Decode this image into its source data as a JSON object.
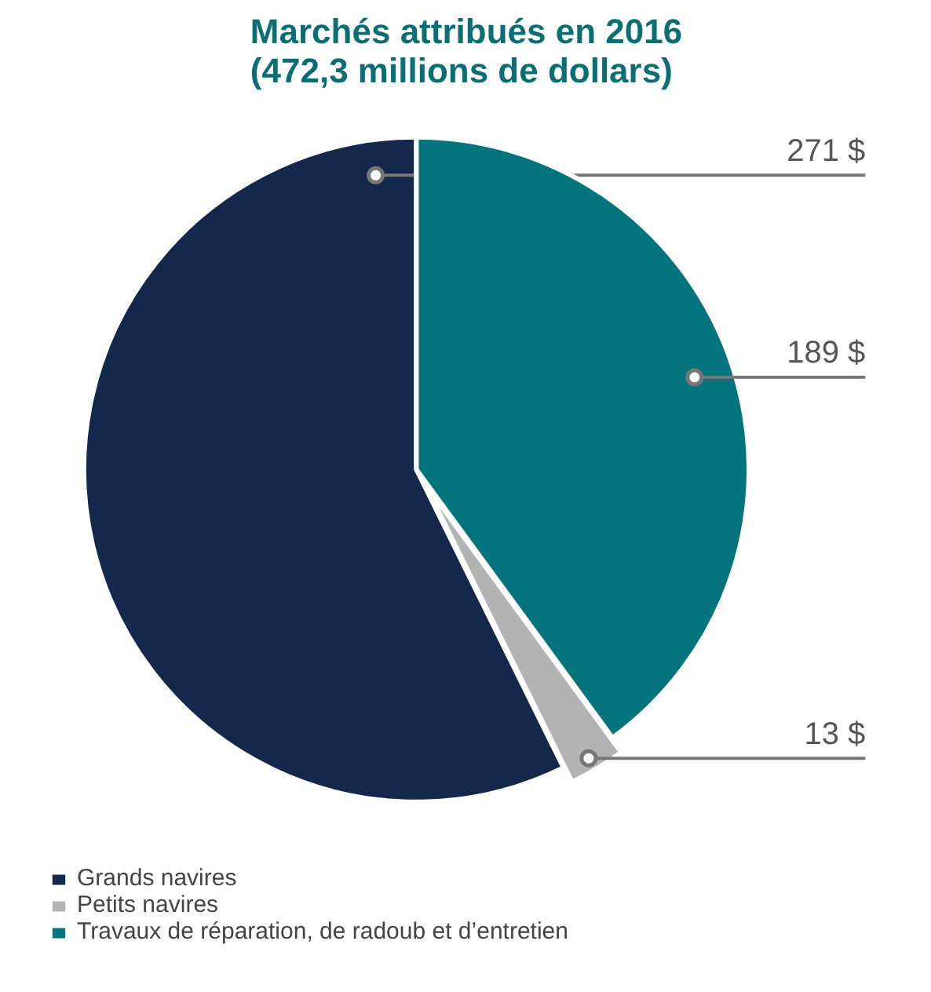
{
  "chart_data": {
    "type": "pie",
    "title": "Marchés attribués en 2016\n(472,3 millions de dollars)",
    "categories": [
      "Grands navires",
      "Petits navires",
      "Travaux de réparation, de radoub et d’entretien"
    ],
    "values": [
      271,
      13,
      189
    ],
    "colors": [
      "#13284a",
      "#b3b3b3",
      "#06747c"
    ],
    "value_labels": [
      "271 $",
      "13 $",
      "189 $"
    ],
    "legend": "bottom"
  }
}
